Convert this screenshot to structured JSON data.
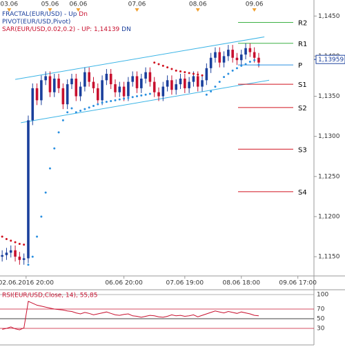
{
  "chart_data": {
    "type": "candlestick",
    "legend": [
      [
        {
          "text": "FRACTAL(EUR/USD)  -  ",
          "color": "#1a3f9c"
        },
        {
          "text": "Up",
          "color": "#1a3f9c"
        },
        {
          "text": "  Dn",
          "color": "#c8102e"
        }
      ],
      [
        {
          "text": "PIVOT(EUR/USD,Pivot)",
          "color": "#1a3f9c"
        }
      ],
      [
        {
          "text": "SAR(EUR/USD,0.02,0.2)  -  UP: 1,14139",
          "color": "#c8102e"
        },
        {
          "text": "  DN",
          "color": "#1a3f9c"
        }
      ]
    ],
    "xlim": [
      -0.5,
      71.7
    ],
    "xticks_top": [
      {
        "value": 1.6,
        "label": "03.06"
      },
      {
        "value": 11,
        "label": "05.06"
      },
      {
        "value": 17.5,
        "label": "06.06"
      },
      {
        "value": 31,
        "label": "07.06"
      },
      {
        "value": 45,
        "label": "08.06"
      },
      {
        "value": 58,
        "label": "09.06"
      }
    ],
    "xticks": [
      {
        "value": 5.5,
        "label": "02.06.2016 20:00"
      },
      {
        "value": 28,
        "label": "06.06 20:00"
      },
      {
        "value": 42,
        "label": "07.06 19:00"
      },
      {
        "value": 55,
        "label": "08.06 18:00"
      },
      {
        "value": 68,
        "label": "09.06 17:00"
      }
    ],
    "ylim": [
      1.1126,
      1.147
    ],
    "yticks": [
      {
        "value": 1.145,
        "label": "1,1450"
      },
      {
        "value": 1.14,
        "label": "1,1400"
      },
      {
        "value": 1.135,
        "label": "1,1350"
      },
      {
        "value": 1.13,
        "label": "1,1300"
      },
      {
        "value": 1.125,
        "label": "1,1250"
      },
      {
        "value": 1.12,
        "label": "1,1200"
      },
      {
        "value": 1.115,
        "label": "1,1150"
      }
    ],
    "last_price": {
      "value": 1.13959,
      "label": "1,13959"
    },
    "up_color": "#1a3f9c",
    "down_color": "#c8102e",
    "opens": [
      1.115,
      1.1152,
      1.1155,
      1.1158,
      1.115,
      1.1146,
      1.1148,
      1.132,
      1.136,
      1.1345,
      1.137,
      1.1375,
      1.1355,
      1.1372,
      1.136,
      1.134,
      1.1365,
      1.1372,
      1.135,
      1.1362,
      1.138,
      1.1368,
      1.136,
      1.1345,
      1.137,
      1.1378,
      1.1365,
      1.1355,
      1.1362,
      1.135,
      1.1368,
      1.1375,
      1.136,
      1.1372,
      1.138,
      1.1368,
      1.1355,
      1.135,
      1.1362,
      1.137,
      1.1358,
      1.1365,
      1.1372,
      1.136,
      1.1368,
      1.1375,
      1.1362,
      1.137,
      1.1385,
      1.1398,
      1.1405,
      1.1392,
      1.14,
      1.1408,
      1.1398,
      1.1395,
      1.1402,
      1.141,
      1.1405,
      1.1398
    ],
    "highs": [
      1.1158,
      1.1161,
      1.1164,
      1.1164,
      1.1156,
      1.1154,
      1.1326,
      1.1366,
      1.1366,
      1.1376,
      1.1381,
      1.1381,
      1.1378,
      1.1378,
      1.1366,
      1.1371,
      1.1378,
      1.1378,
      1.1368,
      1.1386,
      1.1386,
      1.1374,
      1.1366,
      1.1376,
      1.1384,
      1.1384,
      1.1371,
      1.1368,
      1.1368,
      1.1374,
      1.1381,
      1.1381,
      1.1378,
      1.1386,
      1.1386,
      1.1374,
      1.1361,
      1.1368,
      1.1376,
      1.1376,
      1.1371,
      1.1378,
      1.1378,
      1.1374,
      1.1381,
      1.1381,
      1.1376,
      1.1391,
      1.1404,
      1.1411,
      1.1411,
      1.1406,
      1.1414,
      1.1414,
      1.1404,
      1.1408,
      1.1416,
      1.1416,
      1.1411,
      1.1404
    ],
    "lows": [
      1.1144,
      1.1146,
      1.1149,
      1.1144,
      1.114,
      1.114,
      1.1142,
      1.1314,
      1.1339,
      1.1339,
      1.1364,
      1.1349,
      1.1349,
      1.1354,
      1.1334,
      1.1334,
      1.1359,
      1.1344,
      1.1344,
      1.1356,
      1.1362,
      1.1354,
      1.1339,
      1.1339,
      1.1364,
      1.1359,
      1.1349,
      1.1349,
      1.1344,
      1.1344,
      1.1362,
      1.1354,
      1.1354,
      1.1366,
      1.1362,
      1.1349,
      1.1344,
      1.1344,
      1.1356,
      1.1352,
      1.1352,
      1.1359,
      1.1354,
      1.1354,
      1.1362,
      1.1356,
      1.1356,
      1.1364,
      1.1379,
      1.1392,
      1.1386,
      1.1386,
      1.1394,
      1.1392,
      1.1389,
      1.1389,
      1.1396,
      1.1399,
      1.1392,
      1.1386
    ],
    "closes": [
      1.1152,
      1.1155,
      1.1158,
      1.115,
      1.1146,
      1.1148,
      1.132,
      1.136,
      1.1345,
      1.137,
      1.1375,
      1.1355,
      1.1372,
      1.136,
      1.134,
      1.1365,
      1.1372,
      1.135,
      1.1362,
      1.138,
      1.1368,
      1.136,
      1.1345,
      1.137,
      1.1378,
      1.1365,
      1.1355,
      1.1362,
      1.135,
      1.1368,
      1.1375,
      1.136,
      1.1372,
      1.138,
      1.1368,
      1.1355,
      1.135,
      1.1362,
      1.137,
      1.1358,
      1.1365,
      1.1372,
      1.136,
      1.1368,
      1.1375,
      1.1362,
      1.137,
      1.1385,
      1.1398,
      1.1405,
      1.1392,
      1.14,
      1.1408,
      1.1398,
      1.1395,
      1.1402,
      1.141,
      1.1405,
      1.1398,
      1.1392
    ],
    "sar": {
      "up_color": "#2a8fe0",
      "down_color": "#d0101e",
      "values": [
        1.1175,
        1.1172,
        1.117,
        1.1168,
        1.1166,
        1.1165,
        1.114,
        1.115,
        1.1175,
        1.12,
        1.123,
        1.126,
        1.1285,
        1.1305,
        1.132,
        1.133,
        1.1335,
        1.133,
        1.1332,
        1.1334,
        1.1336,
        1.1338,
        1.134,
        1.1342,
        1.1343,
        1.1344,
        1.1345,
        1.1346,
        1.1347,
        1.1348,
        1.1349,
        1.135,
        1.1351,
        1.1352,
        1.1353,
        1.1392,
        1.139,
        1.1388,
        1.1386,
        1.1384,
        1.1382,
        1.1381,
        1.138,
        1.1379,
        1.1378,
        1.1377,
        1.1376,
        1.1352,
        1.1356,
        1.1362,
        1.1368,
        1.1374,
        1.1378,
        1.1382,
        1.1385,
        1.1388,
        1.139,
        1.1393,
        1.1395,
        1.1389
      ]
    },
    "channels": {
      "color": "#3ab4e6",
      "lines": [
        {
          "x": [
            3.0,
            60.3
          ],
          "y": [
            1.1371,
            1.1424
          ]
        },
        {
          "x": [
            4.3,
            61.4
          ],
          "y": [
            1.1317,
            1.137
          ]
        }
      ]
    },
    "pivots": [
      {
        "label": "R2",
        "value": 1.1442,
        "color": "#3cb043"
      },
      {
        "label": "R1",
        "value": 1.1416,
        "color": "#3cb043"
      },
      {
        "label": "P",
        "value": 1.1389,
        "color": "#2a8fe0"
      },
      {
        "label": "S1",
        "value": 1.1365,
        "color": "#d0101e"
      },
      {
        "label": "S2",
        "value": 1.1336,
        "color": "#d0101e"
      },
      {
        "label": "S3",
        "value": 1.1284,
        "color": "#d0101e"
      },
      {
        "label": "S4",
        "value": 1.1231,
        "color": "#d0101e"
      }
    ],
    "rsi": {
      "label": "RSI(EUR/USD,Close, 14), 55,85",
      "color": "#c8102e",
      "ylim": [
        0,
        100
      ],
      "yticks": [
        30,
        50,
        70,
        100
      ],
      "tick_colors": [
        "#c8102e",
        "#000000",
        "#c8102e",
        "#999999"
      ],
      "values": [
        28,
        30,
        33,
        29,
        27,
        31,
        86,
        82,
        78,
        76,
        74,
        72,
        70,
        69,
        68,
        66,
        65,
        62,
        60,
        63,
        61,
        58,
        60,
        62,
        64,
        61,
        58,
        57,
        59,
        60,
        56,
        55,
        53,
        55,
        57,
        56,
        54,
        53,
        55,
        58,
        56,
        57,
        55,
        56,
        58,
        54,
        57,
        60,
        63,
        66,
        64,
        62,
        65,
        63,
        61,
        64,
        62,
        60,
        57,
        56
      ]
    }
  }
}
